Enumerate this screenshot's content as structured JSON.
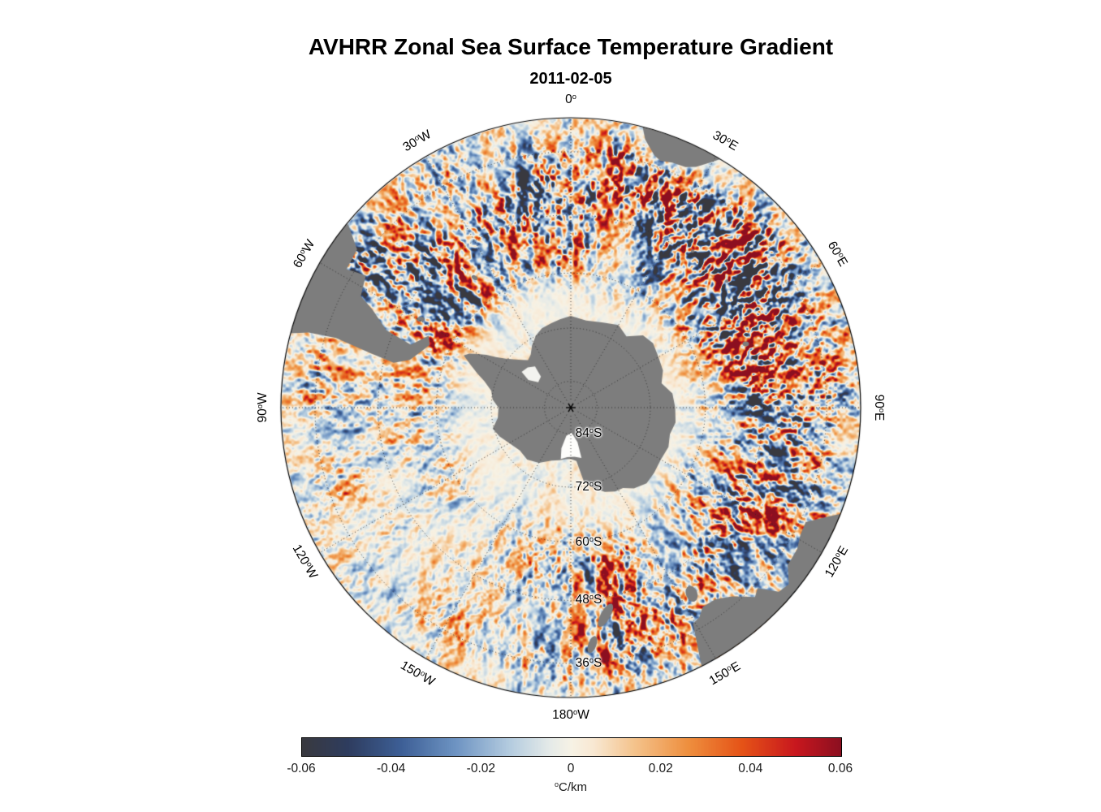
{
  "title": "AVHRR Zonal Sea Surface Temperature Gradient",
  "subtitle": "2011-02-05",
  "chart_data": {
    "type": "heatmap",
    "projection": "south polar stereographic",
    "variable": "zonal sea surface temperature gradient",
    "units": "°C/km",
    "value_range": [
      -0.06,
      0.06
    ],
    "land_color": "#7d7d7d",
    "background_color": "#ffffff",
    "graticule": {
      "style": "dotted",
      "latitude_circles": [
        -84,
        -72,
        -60,
        -48,
        -36
      ],
      "longitude_interval_deg": 30,
      "outer_latitude": -30
    },
    "longitude_labels": [
      {
        "lon": 0,
        "label": "0°"
      },
      {
        "lon": 30,
        "label": "30°E"
      },
      {
        "lon": 60,
        "label": "60°E"
      },
      {
        "lon": 90,
        "label": "90°E"
      },
      {
        "lon": 120,
        "label": "120°E"
      },
      {
        "lon": 150,
        "label": "150°E"
      },
      {
        "lon": 180,
        "label": "180°W"
      },
      {
        "lon": -150,
        "label": "150°W"
      },
      {
        "lon": -120,
        "label": "120°W"
      },
      {
        "lon": -90,
        "label": "90°W"
      },
      {
        "lon": -60,
        "label": "60°W"
      },
      {
        "lon": -30,
        "label": "30°W"
      }
    ],
    "latitude_labels": [
      {
        "lat": -84,
        "label": "84°S"
      },
      {
        "lat": -72,
        "label": "72°S"
      },
      {
        "lat": -60,
        "label": "60°S"
      },
      {
        "lat": -48,
        "label": "48°S"
      },
      {
        "lat": -36,
        "label": "36°S"
      }
    ],
    "colorbar": {
      "orientation": "horizontal",
      "min": -0.06,
      "max": 0.06,
      "ticks": [
        -0.06,
        -0.04,
        -0.02,
        0,
        0.02,
        0.04,
        0.06
      ],
      "tick_labels": [
        "-0.06",
        "-0.04",
        "-0.02",
        "0",
        "0.02",
        "0.04",
        "0.06"
      ],
      "label": "°C/km",
      "stops": [
        {
          "v": -0.06,
          "color": "#39393f"
        },
        {
          "v": -0.05,
          "color": "#2e3c5e"
        },
        {
          "v": -0.038,
          "color": "#3d5f96"
        },
        {
          "v": -0.026,
          "color": "#6d93c2"
        },
        {
          "v": -0.014,
          "color": "#b3cbdf"
        },
        {
          "v": -0.005,
          "color": "#e4eae8"
        },
        {
          "v": 0.0,
          "color": "#f7f2e5"
        },
        {
          "v": 0.005,
          "color": "#f8e8d2"
        },
        {
          "v": 0.014,
          "color": "#f4c38c"
        },
        {
          "v": 0.026,
          "color": "#ee8f3e"
        },
        {
          "v": 0.038,
          "color": "#e55317"
        },
        {
          "v": 0.05,
          "color": "#c8171e"
        },
        {
          "v": 0.06,
          "color": "#8c0f20"
        }
      ]
    }
  }
}
